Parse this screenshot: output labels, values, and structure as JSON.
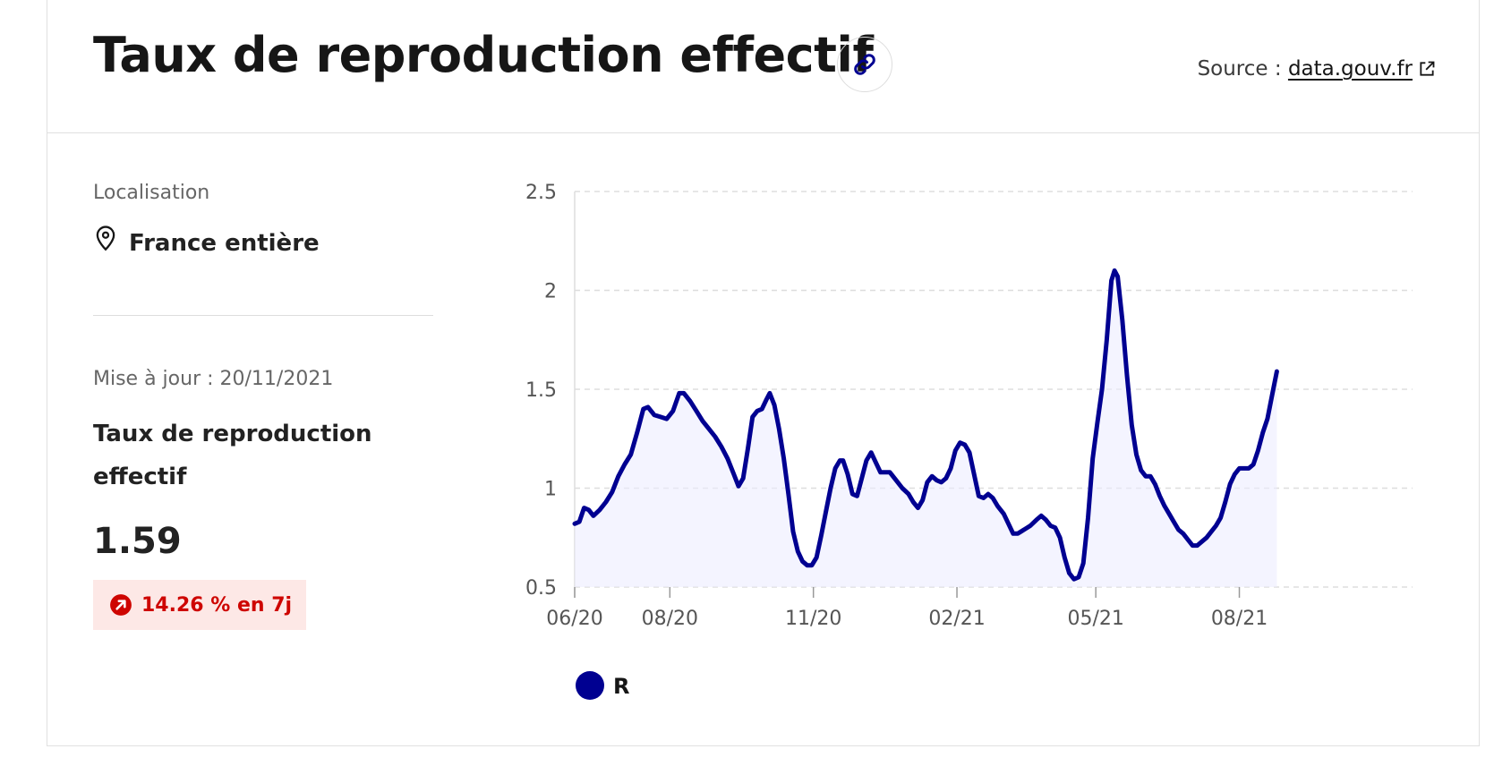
{
  "header": {
    "title": "Taux de reproduction effectif",
    "link_icon": "link-icon",
    "source_label": "Source : ",
    "source_link": "data.gouv.fr",
    "external_icon": "external-link-icon"
  },
  "sidebar": {
    "location_label": "Localisation",
    "location_icon": "map-pin-icon",
    "location_value": "France entière",
    "update_label": "Mise à jour : 20/11/2021",
    "metric_label": "Taux de reproduction effectif",
    "metric_value": "1.59",
    "trend_icon": "arrow-up-right-icon",
    "trend_text": "14.26 % en 7j",
    "trend_color": "#ce0500"
  },
  "colors": {
    "series": "#000091",
    "area": "#ececff",
    "grid": "#dddddd",
    "text": "#161616"
  },
  "chart_data": {
    "type": "area",
    "title": "",
    "xlabel": "",
    "ylabel": "",
    "x_range": [
      "2020-06-01",
      "2021-11-20"
    ],
    "ylim": [
      0.5,
      2.5
    ],
    "yticks": [
      "0.5",
      "1",
      "1.5",
      "2",
      "2.5"
    ],
    "xticks": [
      {
        "label": "06/20",
        "date": "2020-06-01"
      },
      {
        "label": "08/20",
        "date": "2020-08-01"
      },
      {
        "label": "11/20",
        "date": "2020-11-01"
      },
      {
        "label": "02/21",
        "date": "2021-02-01"
      },
      {
        "label": "05/21",
        "date": "2021-05-01"
      },
      {
        "label": "08/21",
        "date": "2021-08-01"
      }
    ],
    "grid": true,
    "legend_position": "bottom-left",
    "series": [
      {
        "name": "R",
        "points": [
          [
            "2020-06-01",
            0.82
          ],
          [
            "2020-06-04",
            0.83
          ],
          [
            "2020-06-07",
            0.9
          ],
          [
            "2020-06-10",
            0.89
          ],
          [
            "2020-06-13",
            0.86
          ],
          [
            "2020-06-17",
            0.89
          ],
          [
            "2020-06-21",
            0.93
          ],
          [
            "2020-06-25",
            0.98
          ],
          [
            "2020-06-29",
            1.06
          ],
          [
            "2020-07-03",
            1.12
          ],
          [
            "2020-07-07",
            1.17
          ],
          [
            "2020-07-11",
            1.28
          ],
          [
            "2020-07-15",
            1.4
          ],
          [
            "2020-07-18",
            1.41
          ],
          [
            "2020-07-22",
            1.37
          ],
          [
            "2020-07-26",
            1.36
          ],
          [
            "2020-07-30",
            1.35
          ],
          [
            "2020-08-03",
            1.39
          ],
          [
            "2020-08-07",
            1.48
          ],
          [
            "2020-08-10",
            1.48
          ],
          [
            "2020-08-14",
            1.44
          ],
          [
            "2020-08-18",
            1.39
          ],
          [
            "2020-08-22",
            1.34
          ],
          [
            "2020-08-26",
            1.3
          ],
          [
            "2020-08-30",
            1.26
          ],
          [
            "2020-09-03",
            1.21
          ],
          [
            "2020-09-07",
            1.15
          ],
          [
            "2020-09-11",
            1.07
          ],
          [
            "2020-09-14",
            1.01
          ],
          [
            "2020-09-17",
            1.05
          ],
          [
            "2020-09-20",
            1.2
          ],
          [
            "2020-09-23",
            1.36
          ],
          [
            "2020-09-26",
            1.39
          ],
          [
            "2020-09-29",
            1.4
          ],
          [
            "2020-10-02",
            1.45
          ],
          [
            "2020-10-04",
            1.48
          ],
          [
            "2020-10-07",
            1.42
          ],
          [
            "2020-10-10",
            1.3
          ],
          [
            "2020-10-13",
            1.15
          ],
          [
            "2020-10-16",
            0.97
          ],
          [
            "2020-10-19",
            0.78
          ],
          [
            "2020-10-22",
            0.68
          ],
          [
            "2020-10-25",
            0.63
          ],
          [
            "2020-10-28",
            0.61
          ],
          [
            "2020-10-31",
            0.61
          ],
          [
            "2020-11-03",
            0.65
          ],
          [
            "2020-11-06",
            0.76
          ],
          [
            "2020-11-09",
            0.88
          ],
          [
            "2020-11-12",
            1.0
          ],
          [
            "2020-11-15",
            1.1
          ],
          [
            "2020-11-18",
            1.14
          ],
          [
            "2020-11-20",
            1.14
          ],
          [
            "2020-11-23",
            1.07
          ],
          [
            "2020-11-26",
            0.97
          ],
          [
            "2020-11-29",
            0.96
          ],
          [
            "2020-12-02",
            1.05
          ],
          [
            "2020-12-05",
            1.14
          ],
          [
            "2020-12-08",
            1.18
          ],
          [
            "2020-12-11",
            1.13
          ],
          [
            "2020-12-14",
            1.08
          ],
          [
            "2020-12-17",
            1.08
          ],
          [
            "2020-12-20",
            1.08
          ],
          [
            "2020-12-24",
            1.04
          ],
          [
            "2020-12-28",
            1.0
          ],
          [
            "2021-01-01",
            0.97
          ],
          [
            "2021-01-04",
            0.93
          ],
          [
            "2021-01-07",
            0.9
          ],
          [
            "2021-01-10",
            0.94
          ],
          [
            "2021-01-13",
            1.03
          ],
          [
            "2021-01-16",
            1.06
          ],
          [
            "2021-01-19",
            1.04
          ],
          [
            "2021-01-22",
            1.03
          ],
          [
            "2021-01-25",
            1.05
          ],
          [
            "2021-01-28",
            1.1
          ],
          [
            "2021-01-31",
            1.19
          ],
          [
            "2021-02-03",
            1.23
          ],
          [
            "2021-02-06",
            1.22
          ],
          [
            "2021-02-09",
            1.18
          ],
          [
            "2021-02-12",
            1.07
          ],
          [
            "2021-02-15",
            0.96
          ],
          [
            "2021-02-18",
            0.95
          ],
          [
            "2021-02-21",
            0.97
          ],
          [
            "2021-02-24",
            0.95
          ],
          [
            "2021-02-27",
            0.91
          ],
          [
            "2021-03-03",
            0.87
          ],
          [
            "2021-03-06",
            0.82
          ],
          [
            "2021-03-09",
            0.77
          ],
          [
            "2021-03-12",
            0.77
          ],
          [
            "2021-03-16",
            0.79
          ],
          [
            "2021-03-20",
            0.81
          ],
          [
            "2021-03-24",
            0.84
          ],
          [
            "2021-03-27",
            0.86
          ],
          [
            "2021-03-30",
            0.84
          ],
          [
            "2021-04-02",
            0.81
          ],
          [
            "2021-04-05",
            0.8
          ],
          [
            "2021-04-08",
            0.75
          ],
          [
            "2021-04-11",
            0.65
          ],
          [
            "2021-04-14",
            0.57
          ],
          [
            "2021-04-17",
            0.54
          ],
          [
            "2021-04-20",
            0.55
          ],
          [
            "2021-04-23",
            0.62
          ],
          [
            "2021-04-26",
            0.85
          ],
          [
            "2021-04-29",
            1.15
          ],
          [
            "2021-05-02",
            1.33
          ],
          [
            "2021-05-05",
            1.5
          ],
          [
            "2021-05-08",
            1.75
          ],
          [
            "2021-05-11",
            2.05
          ],
          [
            "2021-05-13",
            2.1
          ],
          [
            "2021-05-15",
            2.07
          ],
          [
            "2021-05-18",
            1.85
          ],
          [
            "2021-05-21",
            1.57
          ],
          [
            "2021-05-24",
            1.32
          ],
          [
            "2021-05-27",
            1.17
          ],
          [
            "2021-05-30",
            1.09
          ],
          [
            "2021-06-02",
            1.06
          ],
          [
            "2021-06-05",
            1.06
          ],
          [
            "2021-06-08",
            1.02
          ],
          [
            "2021-06-11",
            0.96
          ],
          [
            "2021-06-14",
            0.91
          ],
          [
            "2021-06-17",
            0.87
          ],
          [
            "2021-06-20",
            0.83
          ],
          [
            "2021-06-23",
            0.79
          ],
          [
            "2021-06-26",
            0.77
          ],
          [
            "2021-06-29",
            0.74
          ],
          [
            "2021-07-02",
            0.71
          ],
          [
            "2021-07-05",
            0.71
          ],
          [
            "2021-07-08",
            0.73
          ],
          [
            "2021-07-11",
            0.75
          ],
          [
            "2021-07-14",
            0.78
          ],
          [
            "2021-07-17",
            0.81
          ],
          [
            "2021-07-20",
            0.85
          ],
          [
            "2021-07-23",
            0.93
          ],
          [
            "2021-07-26",
            1.02
          ],
          [
            "2021-07-29",
            1.07
          ],
          [
            "2021-08-01",
            1.1
          ],
          [
            "2021-08-04",
            1.1
          ],
          [
            "2021-08-07",
            1.1
          ],
          [
            "2021-08-10",
            1.12
          ],
          [
            "2021-08-13",
            1.19
          ],
          [
            "2021-08-16",
            1.28
          ],
          [
            "2021-08-19",
            1.35
          ],
          [
            "2021-08-22",
            1.47
          ],
          [
            "2021-08-25",
            1.59
          ]
        ]
      }
    ]
  }
}
